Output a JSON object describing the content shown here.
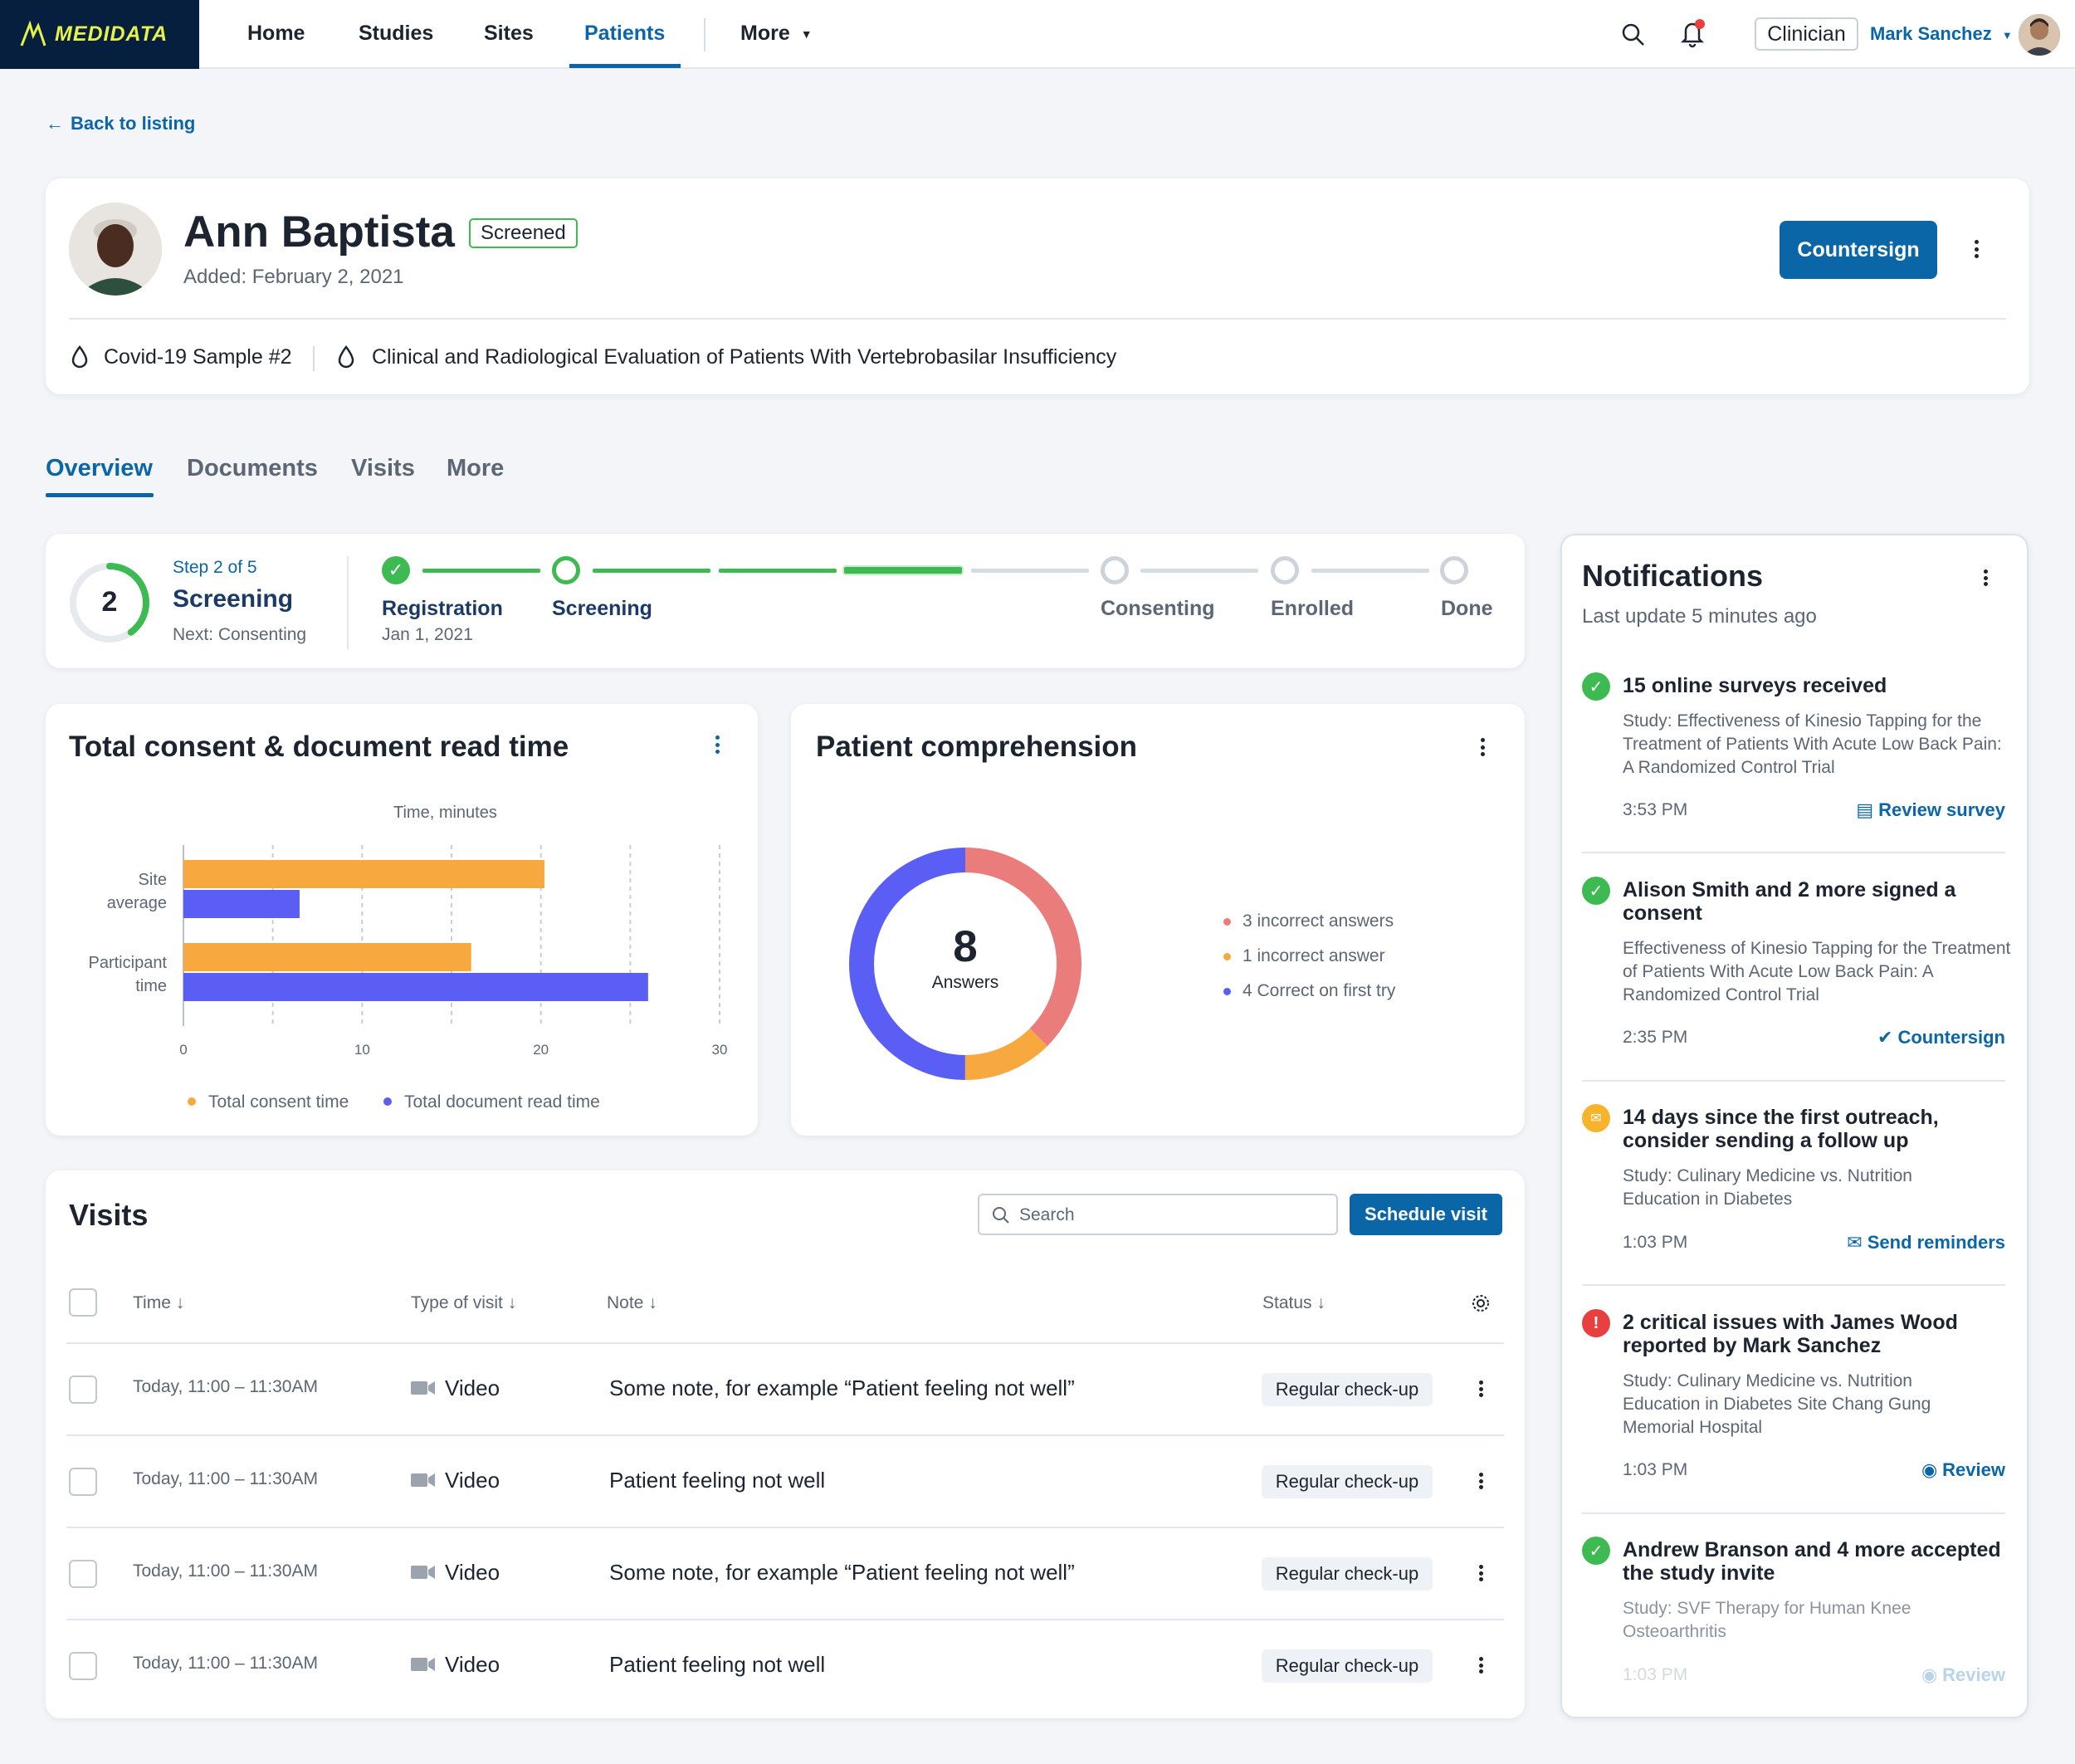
{
  "nav": {
    "logo": "MEDIDATA",
    "items": [
      "Home",
      "Studies",
      "Sites",
      "Patients",
      "More"
    ],
    "role": "Clinician",
    "user": "Mark Sanchez"
  },
  "back_link": "Back to listing",
  "patient": {
    "name": "Ann Baptista",
    "status": "Screened",
    "added": "Added: February 2,  2021",
    "countersign": "Countersign",
    "study1": "Covid-19 Sample #2",
    "study2": "Clinical and Radiological Evaluation of Patients With Vertebrobasilar Insufficiency"
  },
  "tabs": [
    "Overview",
    "Documents",
    "Visits",
    "More"
  ],
  "progress": {
    "step_number": "2",
    "step_of": "Step 2 of 5",
    "current": "Screening",
    "next": "Next: Consenting",
    "fraction": 0.4,
    "steps": [
      {
        "label": "Registration",
        "date": "Jan 1, 2021"
      },
      {
        "label": "Screening"
      },
      {
        "label": "Consenting"
      },
      {
        "label": "Enrolled"
      },
      {
        "label": "Done"
      }
    ]
  },
  "consent_chart": {
    "title": "Total consent & document read time",
    "colors": {
      "consent": "#f7a940",
      "document": "#5b5ef5"
    }
  },
  "chart_data": [
    {
      "type": "bar",
      "title": "Total consent & document read time",
      "xlabel": "Time, minutes",
      "ylabel": "",
      "categories": [
        "Site average",
        "Participant time"
      ],
      "series": [
        {
          "name": "Total consent time",
          "values": [
            20.2,
            16.1
          ]
        },
        {
          "name": "Total document read time",
          "values": [
            6.5,
            26
          ]
        }
      ],
      "xlim": [
        0,
        30
      ],
      "ticks": [
        "0",
        "10",
        "20",
        "30"
      ],
      "grid": true,
      "legend": "bottom"
    },
    {
      "type": "pie",
      "title": "Patient comprehension",
      "center_value": "8",
      "center_label": "Answers",
      "categories": [
        "3 incorrect answers",
        "1 incorrect answer",
        "4 Correct on first try"
      ],
      "values": [
        3,
        1,
        4
      ],
      "colors": [
        "#ea7c7c",
        "#f7a940",
        "#5b5ef5"
      ],
      "legend": "right"
    }
  ],
  "comprehension": {
    "title": "Patient comprehension"
  },
  "visits": {
    "title": "Visits",
    "search_placeholder": "Search",
    "schedule_label": "Schedule visit",
    "headers": [
      "Time",
      "Type of visit",
      "Note",
      "Status"
    ],
    "rows": [
      {
        "time": "Today, 11:00 – 11:30AM",
        "type": "Video",
        "note": "Some note, for example “Patient feeling not well”",
        "status": "Regular check-up"
      },
      {
        "time": "Today, 11:00 – 11:30AM",
        "type": "Video",
        "note": "Patient feeling not well",
        "status": "Regular check-up"
      },
      {
        "time": "Today, 11:00 – 11:30AM",
        "type": "Video",
        "note": "Some note, for example “Patient feeling not well”",
        "status": "Regular check-up"
      },
      {
        "time": "Today, 11:00 – 11:30AM",
        "type": "Video",
        "note": "Patient feeling not well",
        "status": "Regular check-up"
      }
    ]
  },
  "notifications": {
    "title": "Notifications",
    "last_update": "Last update 5 minutes ago",
    "items": [
      {
        "title": "15 online surveys received",
        "body": "Study: Effectiveness of Kinesio Tapping for the Treatment of Patients With Acute Low Back Pain: A Randomized Control Trial",
        "time": "3:53 PM",
        "action": "Review survey",
        "kind": "success"
      },
      {
        "title": "Alison Smith and 2 more signed a consent",
        "body": "Effectiveness of Kinesio Tapping for the Treatment of Patients With Acute Low Back Pain: A Randomized Control Trial",
        "time": "2:35 PM",
        "action": "Countersign",
        "kind": "success"
      },
      {
        "title": "14 days since the first outreach, consider sending a follow up",
        "body": "Study: Culinary Medicine vs. Nutrition Education in Diabetes",
        "time": "1:03 PM",
        "action": "Send reminders",
        "kind": "warning"
      },
      {
        "title": "2 critical issues with James Wood reported by Mark Sanchez",
        "body": "Study: Culinary Medicine vs. Nutrition Education in Diabetes Site Chang Gung Memorial Hospital",
        "time": "1:03 PM",
        "action": "Review",
        "kind": "error"
      },
      {
        "title": "Andrew Branson and 4 more accepted the study invite",
        "body": "Study: SVF Therapy for Human Knee Osteoarthritis",
        "time": "1:03 PM",
        "action": "Review",
        "kind": "success"
      }
    ]
  },
  "colors": {
    "primary": "#0a66a6",
    "success": "#3dba52",
    "warning": "#f7b32b",
    "error": "#e8403f"
  }
}
